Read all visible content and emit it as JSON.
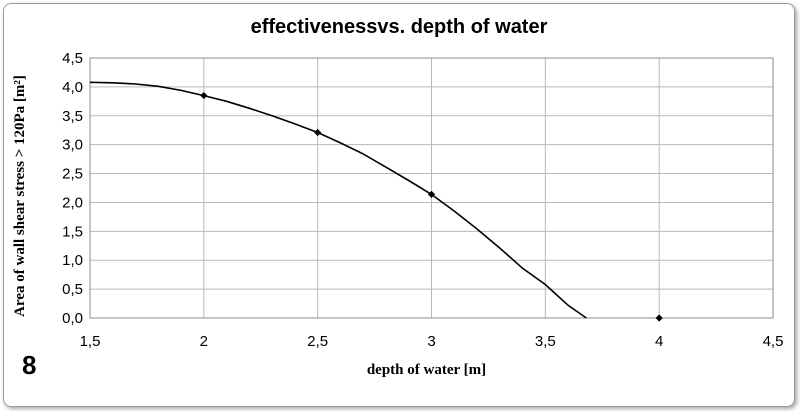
{
  "chart_data": {
    "type": "scatter",
    "title": "effectivenessvs. depth of water",
    "xlabel": "depth of water [m]",
    "ylabel": "Area of wall shear stress > 120Pa [m²]",
    "panel_label": "8",
    "xlim": [
      1.5,
      4.5
    ],
    "ylim": [
      0.0,
      4.5
    ],
    "x_ticks": [
      "1,5",
      "2",
      "2,5",
      "3",
      "3,5",
      "4",
      "4,5"
    ],
    "y_ticks": [
      "0,0",
      "0,5",
      "1,0",
      "1,5",
      "2,0",
      "2,5",
      "3,0",
      "3,5",
      "4,0",
      "4,5"
    ],
    "x_tick_values": [
      1.5,
      2.0,
      2.5,
      3.0,
      3.5,
      4.0,
      4.5
    ],
    "y_tick_values": [
      0.0,
      0.5,
      1.0,
      1.5,
      2.0,
      2.5,
      3.0,
      3.5,
      4.0,
      4.5
    ],
    "grid": true,
    "points": [
      {
        "x": 2.0,
        "y": 3.85
      },
      {
        "x": 2.5,
        "y": 3.21
      },
      {
        "x": 3.0,
        "y": 2.14
      },
      {
        "x": 4.0,
        "y": 0.0
      }
    ],
    "trend_curve": [
      {
        "x": 1.5,
        "y": 4.08
      },
      {
        "x": 1.6,
        "y": 4.07
      },
      {
        "x": 1.7,
        "y": 4.05
      },
      {
        "x": 1.8,
        "y": 4.01
      },
      {
        "x": 1.9,
        "y": 3.94
      },
      {
        "x": 2.0,
        "y": 3.85
      },
      {
        "x": 2.1,
        "y": 3.75
      },
      {
        "x": 2.2,
        "y": 3.63
      },
      {
        "x": 2.3,
        "y": 3.5
      },
      {
        "x": 2.4,
        "y": 3.36
      },
      {
        "x": 2.5,
        "y": 3.21
      },
      {
        "x": 2.6,
        "y": 3.03
      },
      {
        "x": 2.7,
        "y": 2.84
      },
      {
        "x": 2.8,
        "y": 2.61
      },
      {
        "x": 2.9,
        "y": 2.38
      },
      {
        "x": 3.0,
        "y": 2.14
      },
      {
        "x": 3.1,
        "y": 1.85
      },
      {
        "x": 3.2,
        "y": 1.54
      },
      {
        "x": 3.3,
        "y": 1.21
      },
      {
        "x": 3.4,
        "y": 0.86
      },
      {
        "x": 3.5,
        "y": 0.58
      },
      {
        "x": 3.6,
        "y": 0.22
      },
      {
        "x": 3.68,
        "y": 0.0
      }
    ],
    "colors": {
      "line": "#000000",
      "marker": "#000000",
      "grid": "#b8b8b8",
      "plot_border": "#8c8c8c"
    }
  }
}
